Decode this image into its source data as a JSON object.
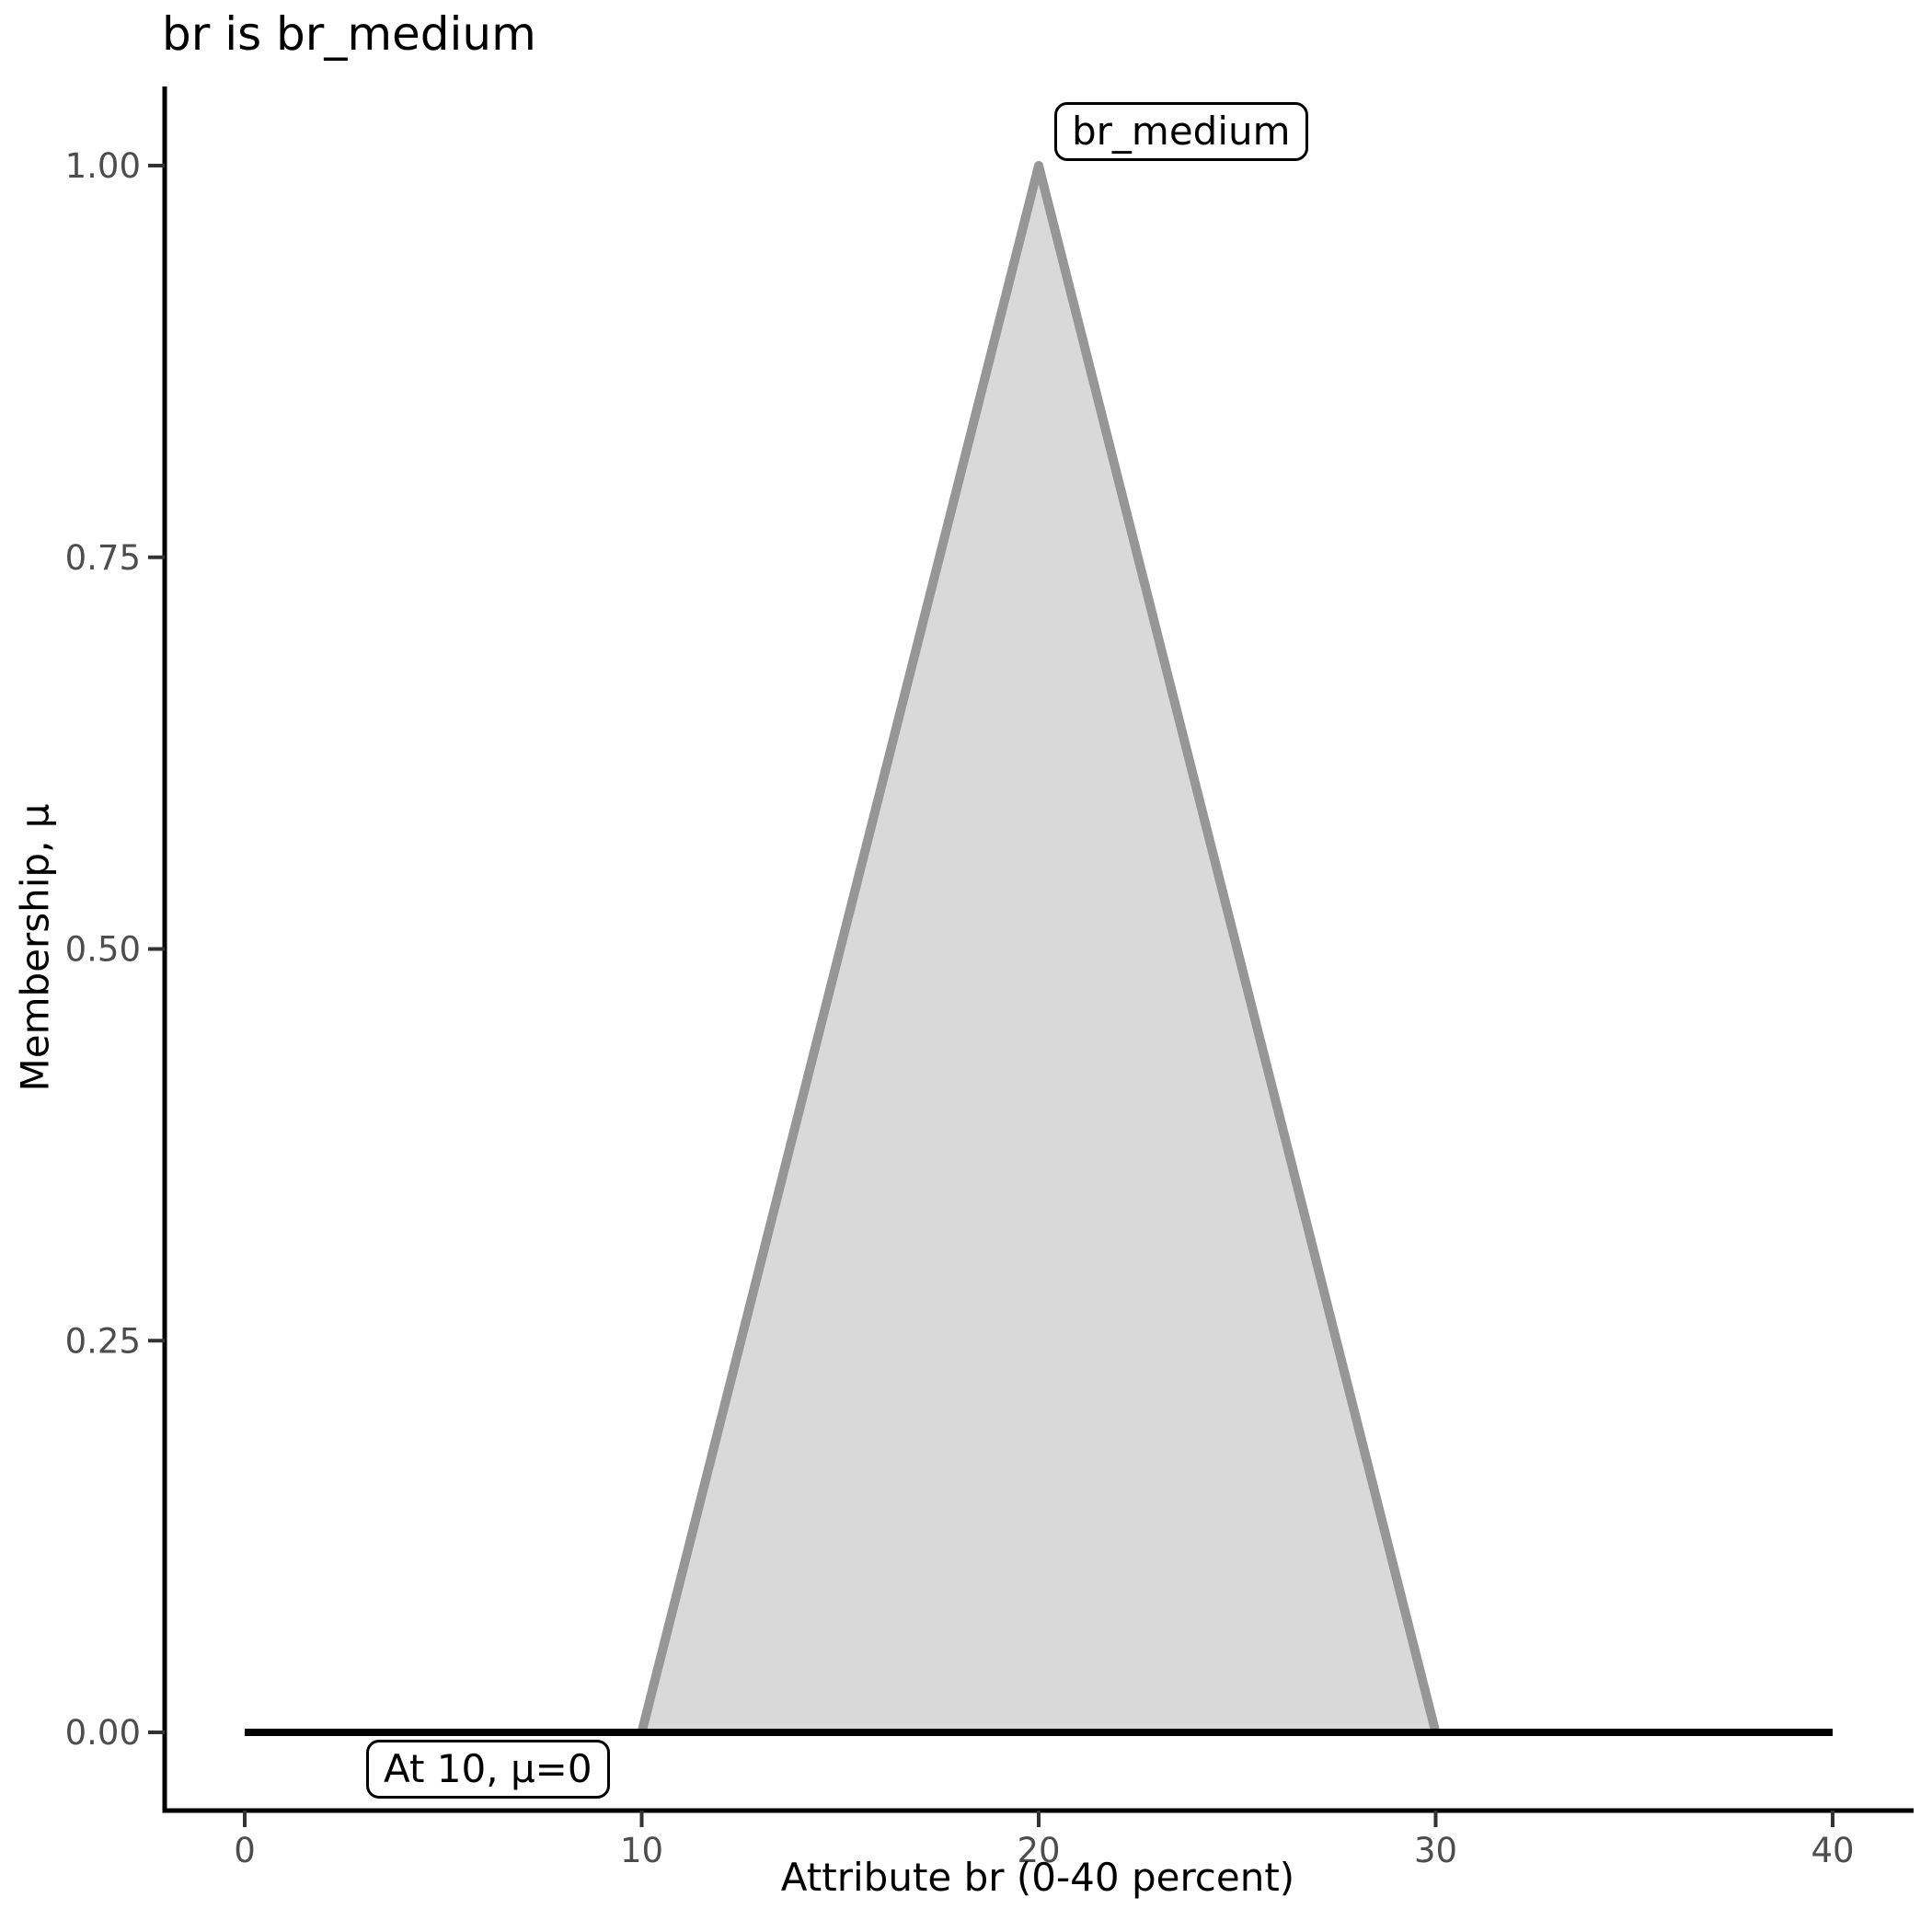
{
  "chart_data": {
    "type": "area",
    "title": "br is br_medium",
    "xlabel": "Attribute br (0-40 percent)",
    "ylabel": "Membership, μ",
    "xlim": [
      0,
      40
    ],
    "ylim": [
      0,
      1
    ],
    "grid": false,
    "legend": "none",
    "x_ticks": [
      {
        "label": "0",
        "value": 0
      },
      {
        "label": "10",
        "value": 10
      },
      {
        "label": "20",
        "value": 20
      },
      {
        "label": "30",
        "value": 30
      },
      {
        "label": "40",
        "value": 40
      }
    ],
    "y_ticks": [
      {
        "label": "0.00",
        "value": 0
      },
      {
        "label": "0.25",
        "value": 0.25
      },
      {
        "label": "0.50",
        "value": 0.5
      },
      {
        "label": "0.75",
        "value": 0.75
      },
      {
        "label": "1.00",
        "value": 1
      }
    ],
    "series": [
      {
        "name": "br_medium",
        "shape": "triangular-membership-function",
        "points": [
          [
            10,
            0
          ],
          [
            20,
            1
          ],
          [
            30,
            0
          ]
        ],
        "fill": "#D9D9D9",
        "stroke": "#969696",
        "stroke_width": 10
      }
    ],
    "baseline": {
      "y": 0,
      "x_from": 0,
      "x_to": 40,
      "color": "#000000",
      "stroke_width": 8
    },
    "annotations": [
      {
        "text": "br_medium",
        "anchor_x": 20,
        "anchor_y": 1
      },
      {
        "text": "At 10, μ=0",
        "anchor_x": 10,
        "anchor_y": 0
      }
    ],
    "colors": {
      "axis_line": "#000000",
      "tick_mark": "#333333",
      "tick_label": "#4D4D4D",
      "title_text": "#000000"
    }
  }
}
